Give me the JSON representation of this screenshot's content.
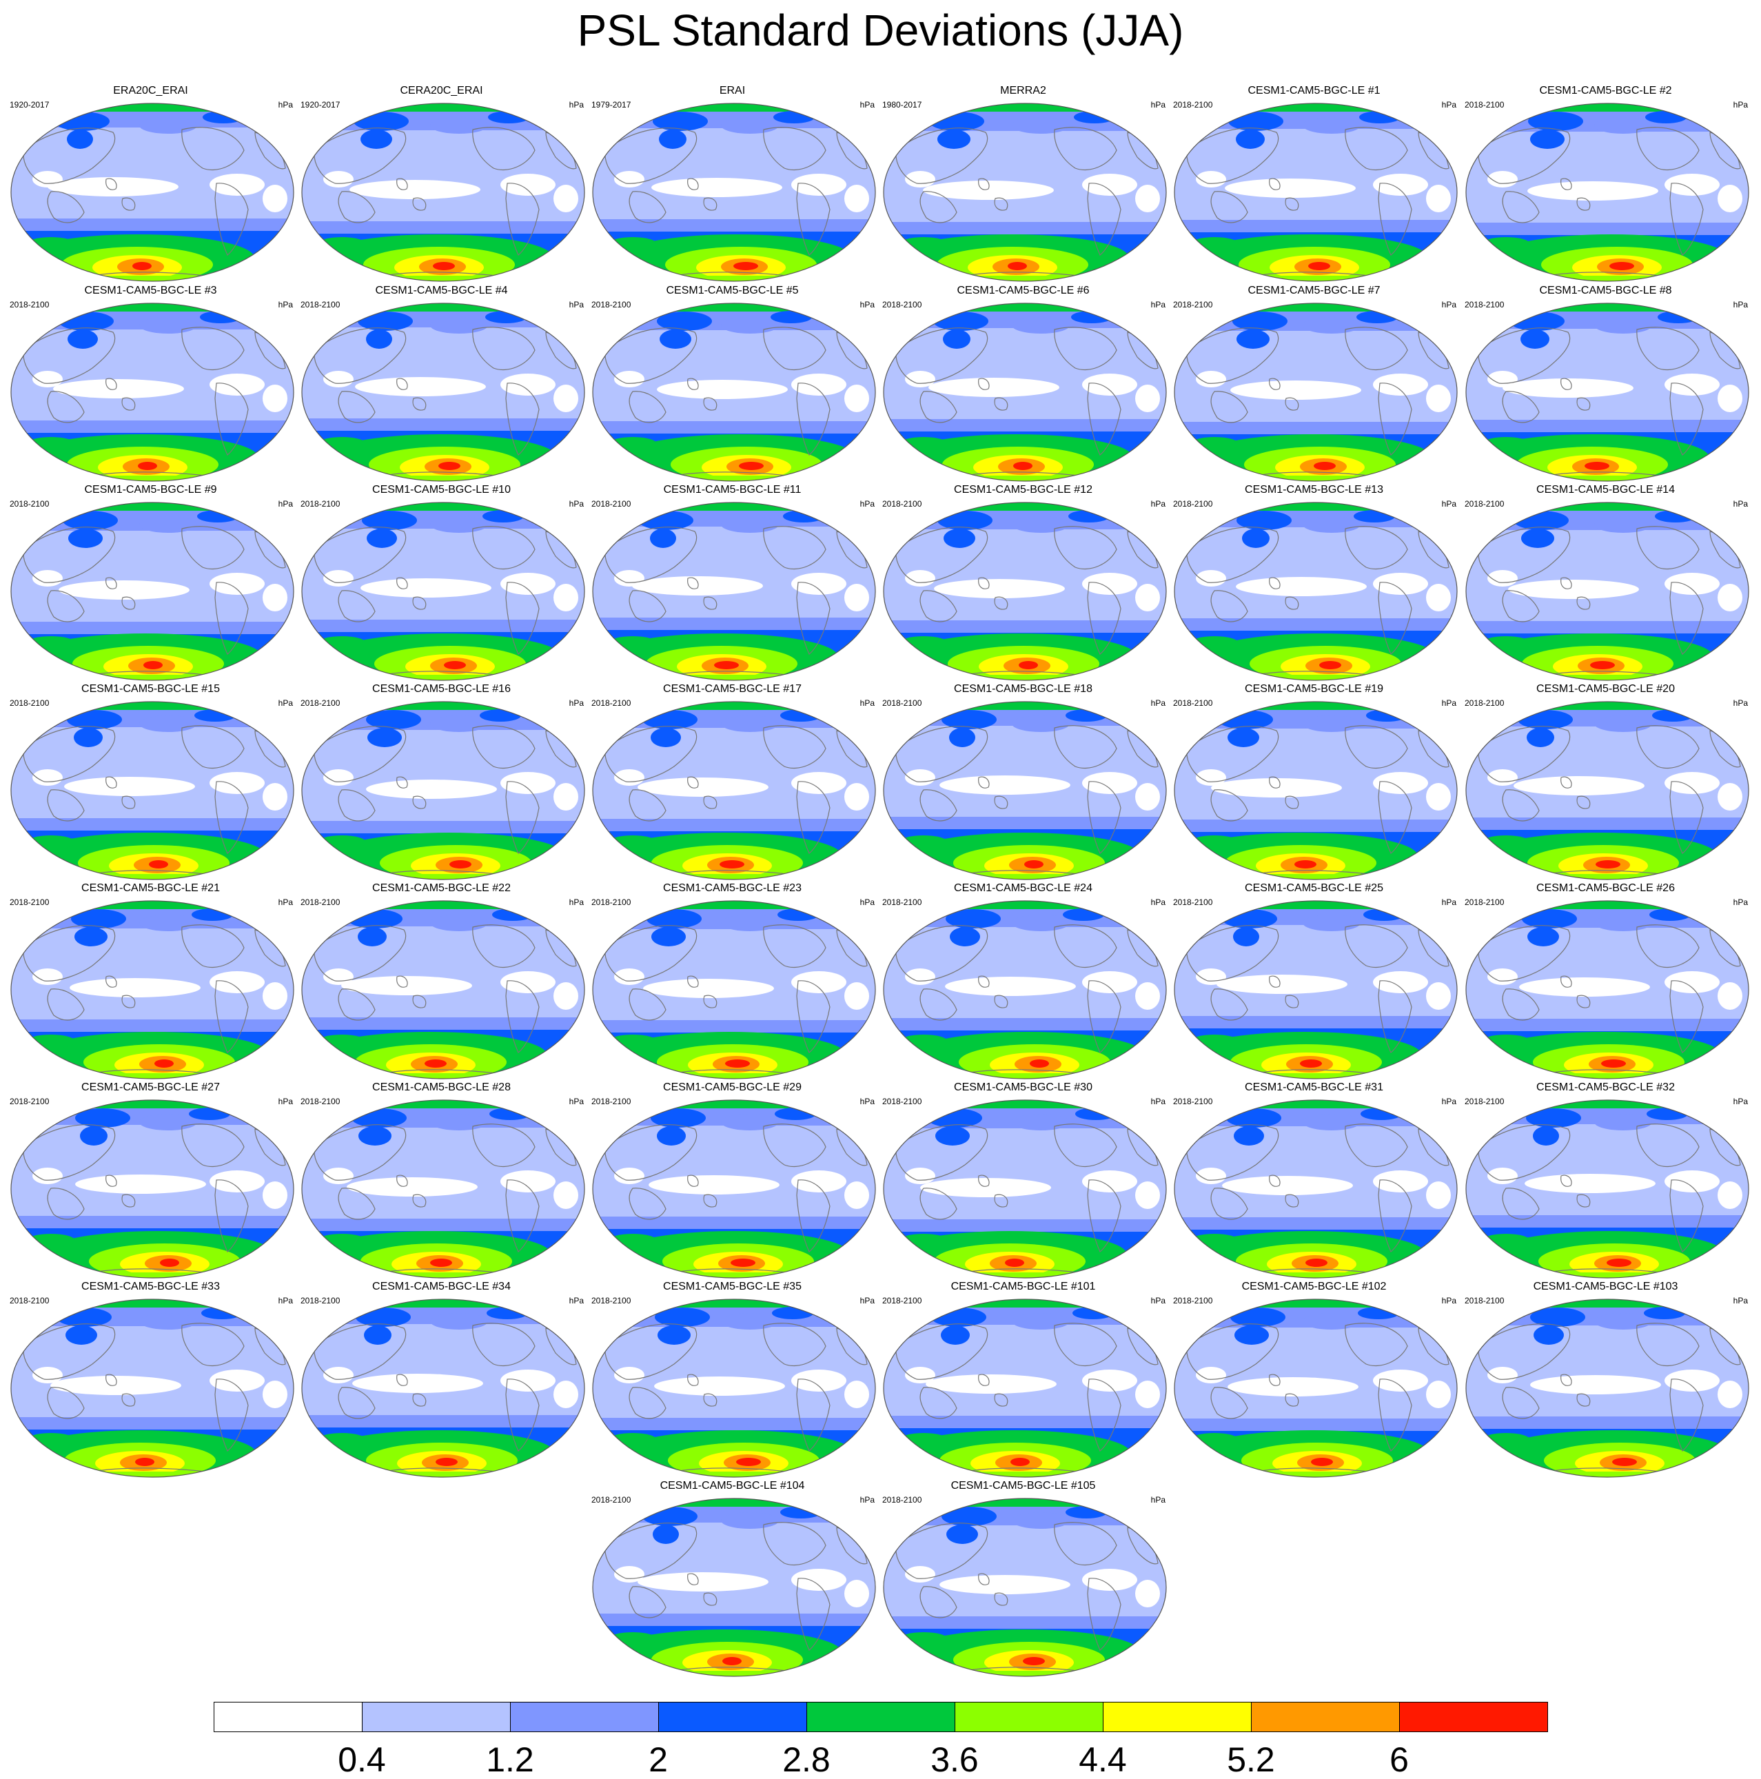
{
  "title": "PSL Standard Deviations (JJA)",
  "units": "hPa",
  "panels": [
    {
      "title": "ERA20C_ERAI",
      "period": "1920-2017"
    },
    {
      "title": "CERA20C_ERAI",
      "period": "1920-2017"
    },
    {
      "title": "ERAI",
      "period": "1979-2017"
    },
    {
      "title": "MERRA2",
      "period": "1980-2017"
    },
    {
      "title": "CESM1-CAM5-BGC-LE #1",
      "period": "2018-2100"
    },
    {
      "title": "CESM1-CAM5-BGC-LE #2",
      "period": "2018-2100"
    },
    {
      "title": "CESM1-CAM5-BGC-LE #3",
      "period": "2018-2100"
    },
    {
      "title": "CESM1-CAM5-BGC-LE #4",
      "period": "2018-2100"
    },
    {
      "title": "CESM1-CAM5-BGC-LE #5",
      "period": "2018-2100"
    },
    {
      "title": "CESM1-CAM5-BGC-LE #6",
      "period": "2018-2100"
    },
    {
      "title": "CESM1-CAM5-BGC-LE #7",
      "period": "2018-2100"
    },
    {
      "title": "CESM1-CAM5-BGC-LE #8",
      "period": "2018-2100"
    },
    {
      "title": "CESM1-CAM5-BGC-LE #9",
      "period": "2018-2100"
    },
    {
      "title": "CESM1-CAM5-BGC-LE #10",
      "period": "2018-2100"
    },
    {
      "title": "CESM1-CAM5-BGC-LE #11",
      "period": "2018-2100"
    },
    {
      "title": "CESM1-CAM5-BGC-LE #12",
      "period": "2018-2100"
    },
    {
      "title": "CESM1-CAM5-BGC-LE #13",
      "period": "2018-2100"
    },
    {
      "title": "CESM1-CAM5-BGC-LE #14",
      "period": "2018-2100"
    },
    {
      "title": "CESM1-CAM5-BGC-LE #15",
      "period": "2018-2100"
    },
    {
      "title": "CESM1-CAM5-BGC-LE #16",
      "period": "2018-2100"
    },
    {
      "title": "CESM1-CAM5-BGC-LE #17",
      "period": "2018-2100"
    },
    {
      "title": "CESM1-CAM5-BGC-LE #18",
      "period": "2018-2100"
    },
    {
      "title": "CESM1-CAM5-BGC-LE #19",
      "period": "2018-2100"
    },
    {
      "title": "CESM1-CAM5-BGC-LE #20",
      "period": "2018-2100"
    },
    {
      "title": "CESM1-CAM5-BGC-LE #21",
      "period": "2018-2100"
    },
    {
      "title": "CESM1-CAM5-BGC-LE #22",
      "period": "2018-2100"
    },
    {
      "title": "CESM1-CAM5-BGC-LE #23",
      "period": "2018-2100"
    },
    {
      "title": "CESM1-CAM5-BGC-LE #24",
      "period": "2018-2100"
    },
    {
      "title": "CESM1-CAM5-BGC-LE #25",
      "period": "2018-2100"
    },
    {
      "title": "CESM1-CAM5-BGC-LE #26",
      "period": "2018-2100"
    },
    {
      "title": "CESM1-CAM5-BGC-LE #27",
      "period": "2018-2100"
    },
    {
      "title": "CESM1-CAM5-BGC-LE #28",
      "period": "2018-2100"
    },
    {
      "title": "CESM1-CAM5-BGC-LE #29",
      "period": "2018-2100"
    },
    {
      "title": "CESM1-CAM5-BGC-LE #30",
      "period": "2018-2100"
    },
    {
      "title": "CESM1-CAM5-BGC-LE #31",
      "period": "2018-2100"
    },
    {
      "title": "CESM1-CAM5-BGC-LE #32",
      "period": "2018-2100"
    },
    {
      "title": "CESM1-CAM5-BGC-LE #33",
      "period": "2018-2100"
    },
    {
      "title": "CESM1-CAM5-BGC-LE #34",
      "period": "2018-2100"
    },
    {
      "title": "CESM1-CAM5-BGC-LE #35",
      "period": "2018-2100"
    },
    {
      "title": "CESM1-CAM5-BGC-LE #101",
      "period": "2018-2100"
    },
    {
      "title": "CESM1-CAM5-BGC-LE #102",
      "period": "2018-2100"
    },
    {
      "title": "CESM1-CAM5-BGC-LE #103",
      "period": "2018-2100"
    },
    {
      "title": "CESM1-CAM5-BGC-LE #104",
      "period": "2018-2100"
    },
    {
      "title": "CESM1-CAM5-BGC-LE #105",
      "period": "2018-2100"
    }
  ],
  "colorbar": {
    "levels": [
      "0.4",
      "1.2",
      "2",
      "2.8",
      "3.6",
      "4.4",
      "5.2",
      "6"
    ],
    "colors": [
      "#ffffff",
      "#b4c3ff",
      "#7f96ff",
      "#0a5aff",
      "#00c83c",
      "#8cff00",
      "#ffff00",
      "#ff9900",
      "#ff1900"
    ]
  },
  "map_colors": {
    "land_outline": "#777777",
    "frame": "#555555"
  }
}
